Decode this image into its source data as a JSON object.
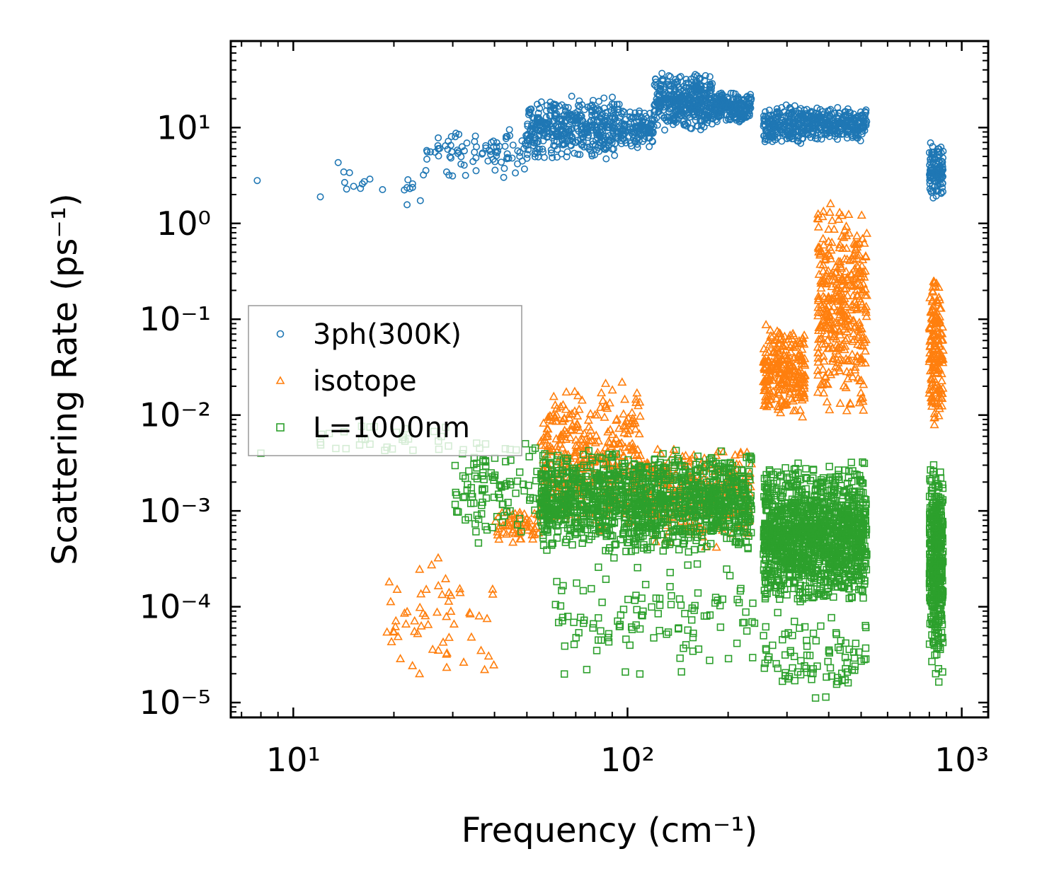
{
  "chart_data": {
    "type": "scatter",
    "xscale": "log",
    "yscale": "log",
    "xlabel": "Frequency (cm⁻¹)",
    "ylabel": "Scattering Rate (ps⁻¹)",
    "xlim": [
      6.5,
      1200
    ],
    "ylim": [
      7e-06,
      80
    ],
    "xticks": [
      {
        "value": 10,
        "label": "10¹"
      },
      {
        "value": 100,
        "label": "10²"
      },
      {
        "value": 1000,
        "label": "10³"
      }
    ],
    "yticks": [
      {
        "value": 10,
        "label": "10¹"
      },
      {
        "value": 1,
        "label": "10⁰"
      },
      {
        "value": 0.1,
        "label": "10⁻¹"
      },
      {
        "value": 0.01,
        "label": "10⁻²"
      },
      {
        "value": 0.001,
        "label": "10⁻³"
      },
      {
        "value": 0.0001,
        "label": "10⁻⁴"
      },
      {
        "value": 1e-05,
        "label": "10⁻⁵"
      }
    ],
    "legend_position": "center-left",
    "series": [
      {
        "name": "3ph(300K)",
        "color": "#1f77b4",
        "marker": "circle",
        "bands": [
          {
            "x": [
              7.8,
              7.8
            ],
            "y": [
              2.8,
              2.8
            ],
            "n": 1
          },
          {
            "x": [
              12,
              25
            ],
            "y": [
              1.2,
              6
            ],
            "n": 22
          },
          {
            "x": [
              25,
              50
            ],
            "y": [
              2.7,
              11
            ],
            "n": 90
          },
          {
            "x": [
              50,
              95
            ],
            "y": [
              4.5,
              22
            ],
            "n": 420
          },
          {
            "x": [
              95,
              120
            ],
            "y": [
              6,
              16
            ],
            "n": 120
          },
          {
            "x": [
              120,
              180
            ],
            "y": [
              9,
              38
            ],
            "n": 380
          },
          {
            "x": [
              180,
              235
            ],
            "y": [
              11,
              24
            ],
            "n": 200
          },
          {
            "x": [
              255,
              330
            ],
            "y": [
              6.5,
              18
            ],
            "n": 180
          },
          {
            "x": [
              330,
              520
            ],
            "y": [
              7,
              17
            ],
            "n": 300
          },
          {
            "x": [
              800,
              880
            ],
            "y": [
              1.6,
              7.5
            ],
            "n": 120
          }
        ]
      },
      {
        "name": "isotope",
        "color": "#ff7f0e",
        "marker": "triangle",
        "bands": [
          {
            "x": [
              19,
              40
            ],
            "y": [
              1.4e-05,
              0.00045
            ],
            "n": 60
          },
          {
            "x": [
              40,
              55
            ],
            "y": [
              0.00045,
              0.001
            ],
            "n": 60
          },
          {
            "x": [
              55,
              110
            ],
            "y": [
              0.0006,
              0.024
            ],
            "n": 380
          },
          {
            "x": [
              110,
              235
            ],
            "y": [
              0.0004,
              0.005
            ],
            "n": 300
          },
          {
            "x": [
              255,
              340
            ],
            "y": [
              0.009,
              0.09
            ],
            "n": 260
          },
          {
            "x": [
              370,
              520
            ],
            "y": [
              0.008,
              2.0
            ],
            "n": 380
          },
          {
            "x": [
              800,
              880
            ],
            "y": [
              0.006,
              0.38
            ],
            "n": 160
          }
        ]
      },
      {
        "name": "L=1000nm",
        "color": "#2ca02c",
        "marker": "square",
        "bands": [
          {
            "x": [
              8,
              8
            ],
            "y": [
              0.004,
              0.004
            ],
            "n": 1
          },
          {
            "x": [
              12,
              30
            ],
            "y": [
              0.0036,
              0.008
            ],
            "n": 30
          },
          {
            "x": [
              30,
              60
            ],
            "y": [
              0.0004,
              0.0075
            ],
            "n": 120
          },
          {
            "x": [
              55,
              235
            ],
            "y": [
              0.00035,
              0.0045
            ],
            "n": 1300
          },
          {
            "x": [
              60,
              240
            ],
            "y": [
              1.5e-05,
              0.0004
            ],
            "n": 120
          },
          {
            "x": [
              255,
              520
            ],
            "y": [
              0.0001,
              0.0033
            ],
            "n": 1300
          },
          {
            "x": [
              255,
              520
            ],
            "y": [
              1e-05,
              0.0001
            ],
            "n": 90
          },
          {
            "x": [
              800,
              880
            ],
            "y": [
              2.5e-05,
              0.0035
            ],
            "n": 380
          },
          {
            "x": [
              800,
              880
            ],
            "y": [
              1.5e-05,
              2.5e-05
            ],
            "n": 4
          }
        ]
      }
    ]
  }
}
